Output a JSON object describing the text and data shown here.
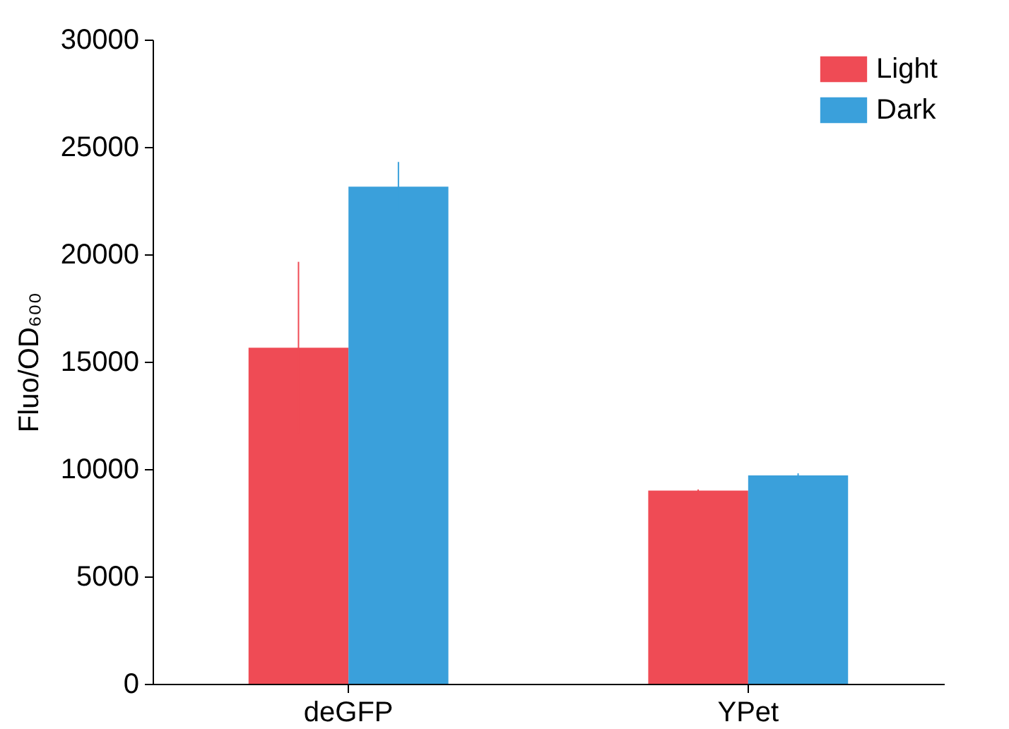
{
  "chart_data": {
    "type": "bar",
    "ylabel": "Fluo/OD₆₀₀",
    "categories": [
      "deGFP",
      "YPet"
    ],
    "series": [
      {
        "name": "Light",
        "color": "#ef4b55",
        "values": [
          15650,
          9000
        ],
        "errors": [
          4000,
          50
        ]
      },
      {
        "name": "Dark",
        "color": "#3aa0db",
        "values": [
          23150,
          9700
        ],
        "errors": [
          1150,
          100
        ]
      }
    ],
    "ylim": [
      0,
      30000
    ],
    "yticks": [
      0,
      5000,
      10000,
      15000,
      20000,
      25000,
      30000
    ],
    "legend": "top right",
    "grid": false
  }
}
